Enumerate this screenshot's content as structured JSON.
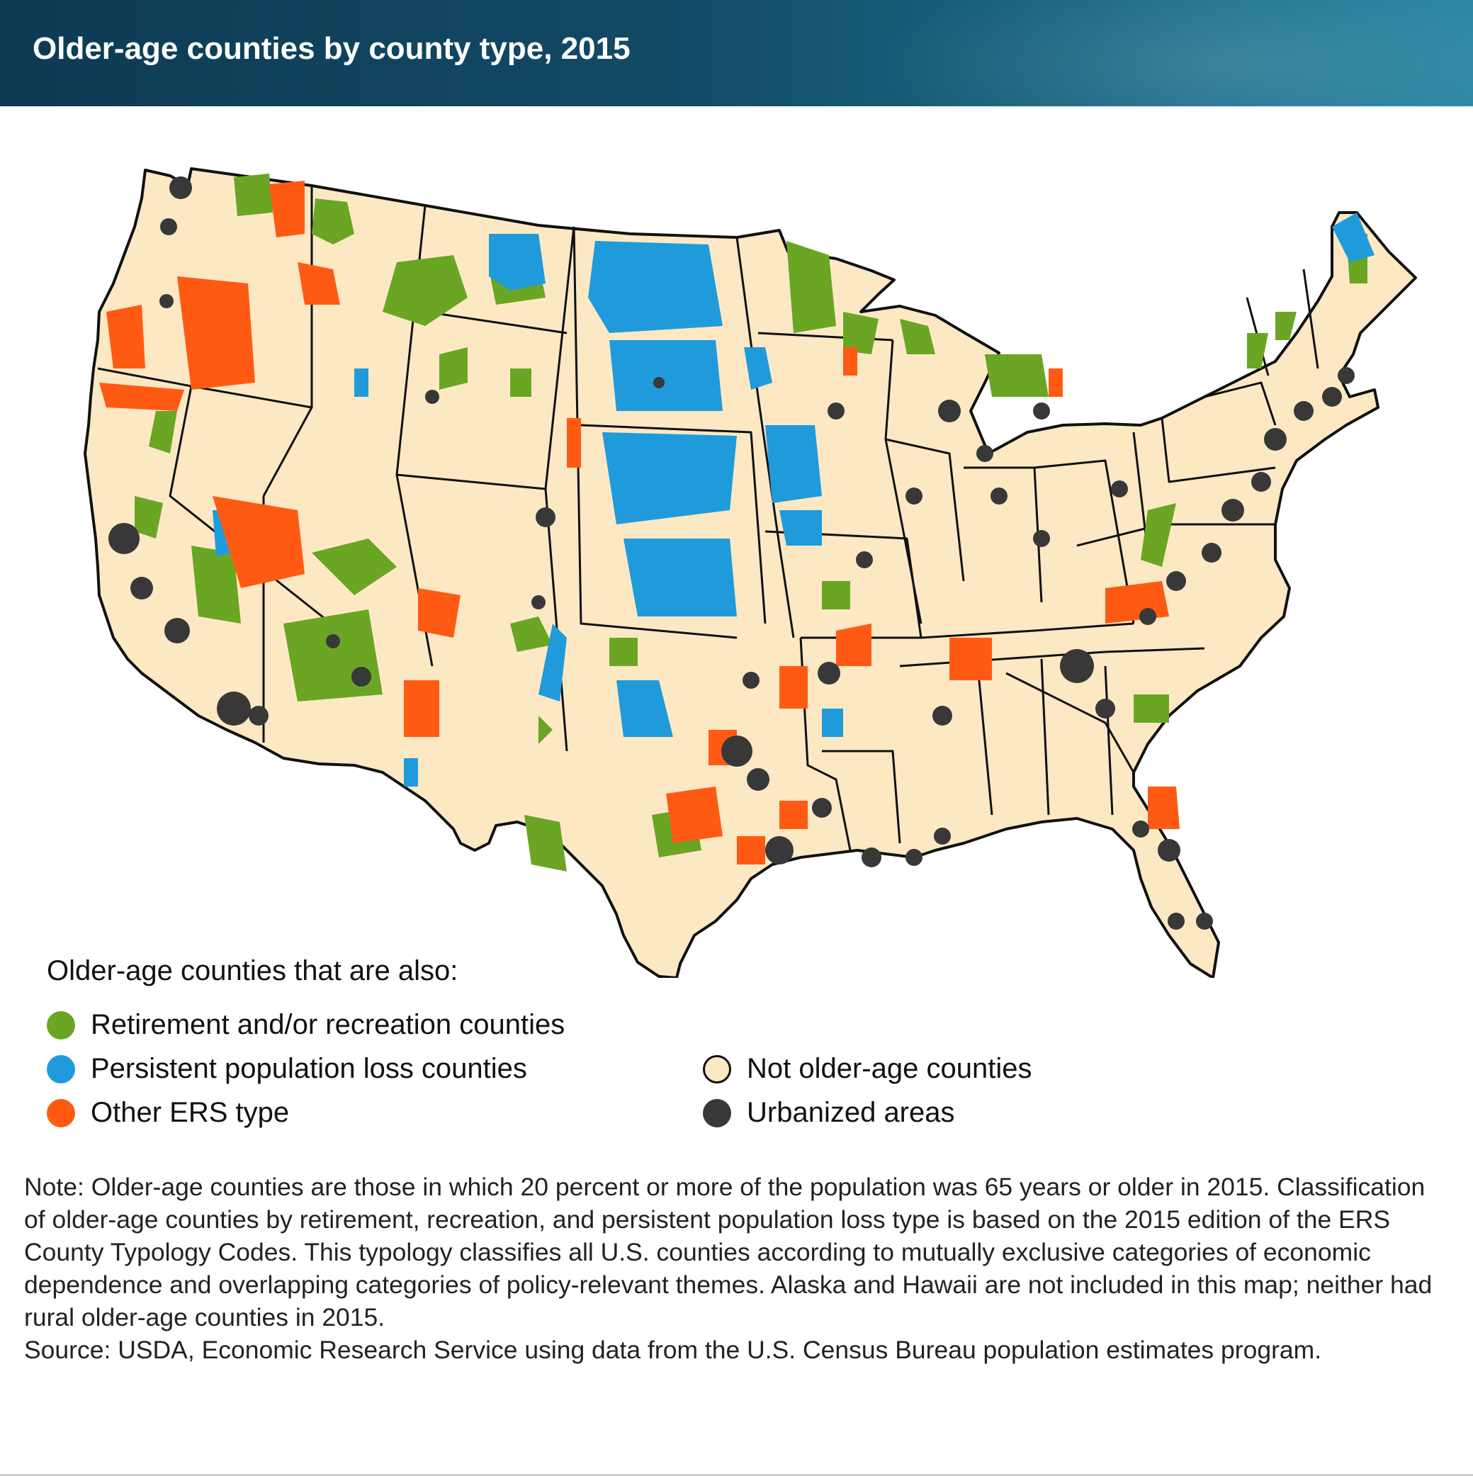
{
  "title": "Older-age counties by county type, 2015",
  "map": {
    "region": "Contiguous United States",
    "colors": {
      "retirement_recreation": "#6aa624",
      "population_loss": "#1f9bdc",
      "other_ers": "#ff5a14",
      "not_older_age": "#fde8c4",
      "urbanized": "#383838",
      "state_border": "#111111"
    }
  },
  "legend": {
    "title": "Older-age counties that are also:",
    "items": [
      {
        "key": "retirement_recreation",
        "label": "Retirement and/or recreation counties",
        "color": "#6aa624"
      },
      {
        "key": "population_loss",
        "label": "Persistent population loss counties",
        "color": "#1f9bdc"
      },
      {
        "key": "other_ers",
        "label": "Other ERS type",
        "color": "#ff5a14"
      },
      {
        "key": "not_older_age",
        "label": "Not older-age counties",
        "color": "#fde8c4"
      },
      {
        "key": "urbanized",
        "label": "Urbanized areas",
        "color": "#383838"
      }
    ]
  },
  "note": "Note: Older-age counties are those in which 20 percent or more of the population was 65 years or older in 2015. Classification of older-age counties by retirement, recreation, and persistent population loss type is based on the 2015 edition of the ERS County Typology Codes. This typology classifies all U.S. counties according to mutually exclusive categories of economic dependence and overlapping categories of policy-relevant themes. Alaska and Hawaii are not included in this map; neither had rural older-age counties in 2015.",
  "source": "Source: USDA, Economic Research Service using data from the U.S. Census Bureau population estimates program."
}
